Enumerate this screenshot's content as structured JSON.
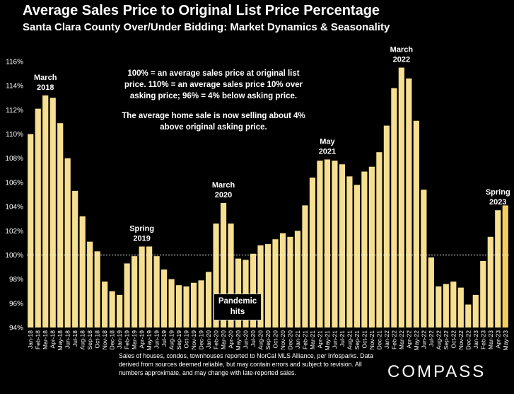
{
  "chart_data": {
    "type": "bar",
    "title": "Average Sales Price to Original List Price Percentage",
    "subtitle": "Santa Clara County Over/Under Bidding: Market Dynamics & Seasonality",
    "ylim": [
      94,
      116
    ],
    "ytick_values": [
      94,
      96,
      98,
      100,
      102,
      104,
      106,
      108,
      110,
      112,
      114,
      116
    ],
    "ytick_labels": [
      "94%",
      "96%",
      "98%",
      "100%",
      "102%",
      "104%",
      "106%",
      "108%",
      "110%",
      "112%",
      "114%",
      "116%"
    ],
    "reference_line": 100,
    "bar_color": "#f7df92",
    "highlight_color": "#f5cf5e",
    "categories": [
      "Jan-18",
      "Feb-18",
      "Mar-18",
      "Apr-18",
      "May-18",
      "Jun-18",
      "Jul-18",
      "Aug-18",
      "Sep-18",
      "Oct-18",
      "Nov-18",
      "Dec-18",
      "Jan-19",
      "Feb-19",
      "Mar-19",
      "Apr-19",
      "May-19",
      "Jun-19",
      "Jul-19",
      "Aug-19",
      "Sep-19",
      "Oct-19",
      "Nov-19",
      "Dec-19",
      "Jan-20",
      "Feb-20",
      "Mar-20",
      "Apr-20",
      "May-20",
      "Jun-20",
      "Jul-20",
      "Aug-20",
      "Sep-20",
      "Oct-20",
      "Nov-20",
      "Dec-20",
      "Jan-21",
      "Feb-21",
      "Mar-21",
      "Apr-21",
      "May-21",
      "Jun-21",
      "Jul-21",
      "Aug-21",
      "Sep-21",
      "Oct-21",
      "Nov-21",
      "Dec-21",
      "Jan-22",
      "Feb-22",
      "Mar-22",
      "Apr-22",
      "May-22",
      "Jun-22",
      "Jul-22",
      "Aug-22",
      "Sep-22",
      "Oct-22",
      "Nov-22",
      "Dec-22",
      "Jan-23",
      "Feb-23",
      "Mar-23",
      "Apr-23",
      "May-23"
    ],
    "values": [
      110.0,
      112.1,
      113.2,
      113.0,
      110.9,
      108.0,
      105.3,
      103.2,
      101.1,
      100.3,
      97.8,
      97.0,
      96.7,
      99.3,
      99.9,
      100.7,
      100.7,
      99.9,
      98.8,
      98.0,
      97.5,
      97.4,
      97.7,
      97.9,
      98.6,
      102.6,
      104.3,
      102.6,
      99.7,
      99.6,
      100.1,
      100.8,
      100.9,
      101.3,
      101.8,
      101.5,
      102.0,
      104.1,
      106.4,
      107.8,
      107.9,
      107.8,
      107.5,
      106.5,
      105.8,
      106.9,
      107.3,
      108.5,
      110.7,
      113.8,
      115.5,
      114.6,
      111.1,
      105.4,
      99.8,
      97.4,
      97.6,
      97.8,
      97.3,
      95.9,
      96.7,
      99.5,
      101.5,
      103.7,
      104.1
    ],
    "highlight_index": 64,
    "annotations": [
      {
        "lines": [
          "March",
          "2018"
        ],
        "index": 2
      },
      {
        "lines": [
          "Spring",
          "2019"
        ],
        "index": 15
      },
      {
        "lines": [
          "March",
          "2020"
        ],
        "index": 26
      },
      {
        "lines": [
          "May",
          "2021"
        ],
        "index": 40
      },
      {
        "lines": [
          "March",
          "2022"
        ],
        "index": 50
      },
      {
        "lines": [
          "Spring",
          "2023"
        ],
        "index": 63
      }
    ]
  },
  "notes": {
    "line1": "100% = an average sales price at original list price. 110% = an average sales price 10% over asking price; 96% = 4% below asking price.",
    "line2": "The average home sale is now selling about 4% above original asking price."
  },
  "pandemic": {
    "line1": "Pandemic",
    "line2": "hits"
  },
  "source_text": "Sales of houses, condos, townhouses reported to NorCal MLS Alliance, per Infosparks. Data derived from sources deemed reliable, but may contain errors and subject to revision. All numbers approximate, and may change with late-reported sales.",
  "logo": "COMPASS"
}
